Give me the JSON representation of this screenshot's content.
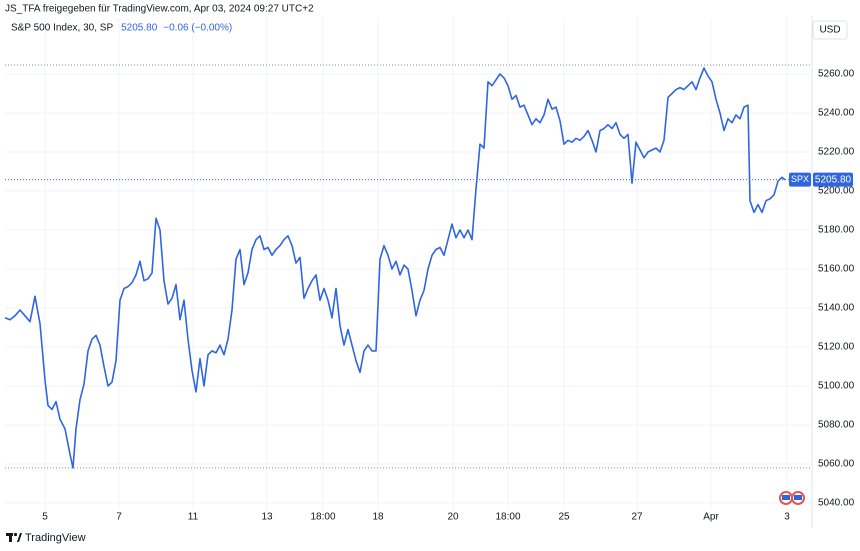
{
  "chart_data": {
    "type": "line",
    "header": "JS_TFA freigegeben für TradingView.com, Apr 03, 2024 09:27 UTC+2",
    "currency": "USD",
    "brand": "TradingView",
    "change": "−0.06 (−0.00%)",
    "price_line": {
      "value": 5205.8,
      "label": "5205.80",
      "symbol": "SPX",
      "color": "#2f66e0"
    },
    "reference_lines": [
      5264.6,
      5058
    ],
    "grid": true,
    "xlim": [
      0,
      807
    ],
    "ylim": [
      5031.3,
      5288.7
    ],
    "xticks": [
      {
        "value": 40,
        "label": "5"
      },
      {
        "value": 114,
        "label": "7"
      },
      {
        "value": 188,
        "label": "11"
      },
      {
        "value": 262,
        "label": "13"
      },
      {
        "value": 318,
        "label": "18:00"
      },
      {
        "value": 373,
        "label": "18"
      },
      {
        "value": 448,
        "label": "20"
      },
      {
        "value": 503,
        "label": "18:00"
      },
      {
        "value": 559,
        "label": "25"
      },
      {
        "value": 632,
        "label": "27"
      },
      {
        "value": 706,
        "label": "Apr"
      },
      {
        "value": 782,
        "label": "3"
      }
    ],
    "yticks": [
      {
        "value": 5040,
        "label": "5040.00"
      },
      {
        "value": 5060,
        "label": "5060.00"
      },
      {
        "value": 5080,
        "label": "5080.00"
      },
      {
        "value": 5100,
        "label": "5100.00"
      },
      {
        "value": 5120,
        "label": "5120.00"
      },
      {
        "value": 5140,
        "label": "5140.00"
      },
      {
        "value": 5160,
        "label": "5160.00"
      },
      {
        "value": 5180,
        "label": "5180.00"
      },
      {
        "value": 5200,
        "label": "5200.00"
      },
      {
        "value": 5220,
        "label": "5220.00"
      },
      {
        "value": 5240,
        "label": "5240.00"
      },
      {
        "value": 5260,
        "label": "5260.00"
      }
    ],
    "series": [
      {
        "name": "S&P 500 Index, 30, SP",
        "color": "#2f66e0",
        "x": [
          0,
          5,
          10,
          15,
          20,
          25,
          30,
          35,
          40,
          43,
          47,
          51,
          55,
          60,
          65,
          68,
          71,
          75,
          79,
          83,
          87,
          91,
          95,
          99,
          103,
          107,
          111,
          115,
          119,
          123,
          127,
          131,
          135,
          139,
          143,
          147,
          151,
          155,
          159,
          163,
          167,
          171,
          175,
          179,
          183,
          187,
          191,
          195,
          199,
          203,
          207,
          211,
          215,
          219,
          223,
          227,
          231,
          235,
          239,
          243,
          247,
          251,
          255,
          259,
          263,
          267,
          271,
          275,
          279,
          283,
          287,
          291,
          295,
          299,
          303,
          307,
          311,
          315,
          319,
          323,
          327,
          331,
          335,
          339,
          343,
          347,
          351,
          355,
          359,
          363,
          367,
          371,
          375,
          379,
          383,
          387,
          391,
          395,
          399,
          403,
          407,
          411,
          415,
          419,
          423,
          427,
          431,
          435,
          439,
          443,
          447,
          451,
          455,
          459,
          463,
          467,
          471,
          475,
          479,
          483,
          487,
          491,
          495,
          499,
          503,
          507,
          511,
          515,
          519,
          523,
          527,
          531,
          535,
          539,
          543,
          547,
          551,
          555,
          559,
          563,
          567,
          571,
          575,
          579,
          583,
          587,
          591,
          595,
          599,
          603,
          607,
          611,
          615,
          619,
          623,
          627,
          631,
          635,
          639,
          643,
          647,
          651,
          655,
          659,
          663,
          667,
          671,
          675,
          679,
          683,
          687,
          691,
          695,
          699,
          703,
          707,
          711,
          715,
          719,
          723,
          727,
          731,
          735,
          739,
          743,
          745,
          749,
          753,
          757,
          761,
          765,
          769,
          773,
          777,
          780
        ],
        "values": [
          5135,
          5134,
          5136,
          5139,
          5136,
          5133,
          5146,
          5132,
          5103,
          5090,
          5088,
          5092,
          5083,
          5078,
          5065,
          5058,
          5078,
          5093,
          5101,
          5118,
          5124,
          5126,
          5121,
          5110,
          5100,
          5102,
          5113,
          5144,
          5150,
          5151,
          5153,
          5157,
          5164,
          5154,
          5155,
          5158,
          5186,
          5180,
          5154,
          5142,
          5145,
          5152,
          5134,
          5144,
          5124,
          5108,
          5097,
          5114,
          5100,
          5116,
          5118,
          5117,
          5121,
          5116,
          5124,
          5139,
          5165,
          5170,
          5152,
          5158,
          5170,
          5175,
          5177,
          5170,
          5171,
          5167,
          5170,
          5172,
          5175,
          5177,
          5172,
          5163,
          5166,
          5145,
          5150,
          5154,
          5157,
          5144,
          5150,
          5144,
          5135,
          5150,
          5131,
          5121,
          5129,
          5121,
          5113,
          5107,
          5118,
          5121,
          5118,
          5118,
          5165,
          5172,
          5167,
          5160,
          5164,
          5157,
          5162,
          5160,
          5149,
          5136,
          5144,
          5149,
          5160,
          5167,
          5170,
          5171,
          5167,
          5175,
          5183,
          5176,
          5180,
          5176,
          5180,
          5175,
          5201,
          5224,
          5222,
          5256,
          5254,
          5257,
          5260,
          5258,
          5254,
          5247,
          5249,
          5243,
          5244,
          5239,
          5234,
          5237,
          5235,
          5239,
          5247,
          5242,
          5243,
          5236,
          5224,
          5226,
          5225,
          5227,
          5226,
          5228,
          5231,
          5226,
          5220,
          5231,
          5232,
          5234,
          5232,
          5235,
          5229,
          5227,
          5229,
          5204,
          5225,
          5221,
          5217,
          5220,
          5221,
          5222,
          5220,
          5226,
          5248,
          5250,
          5252,
          5253,
          5252,
          5254,
          5256,
          5252,
          5258,
          5263,
          5259,
          5256,
          5247,
          5240,
          5231,
          5237,
          5235,
          5239,
          5237,
          5243,
          5244,
          5195,
          5189,
          5193,
          5189,
          5195,
          5196,
          5198,
          5205,
          5207,
          5205.8
        ]
      }
    ]
  }
}
